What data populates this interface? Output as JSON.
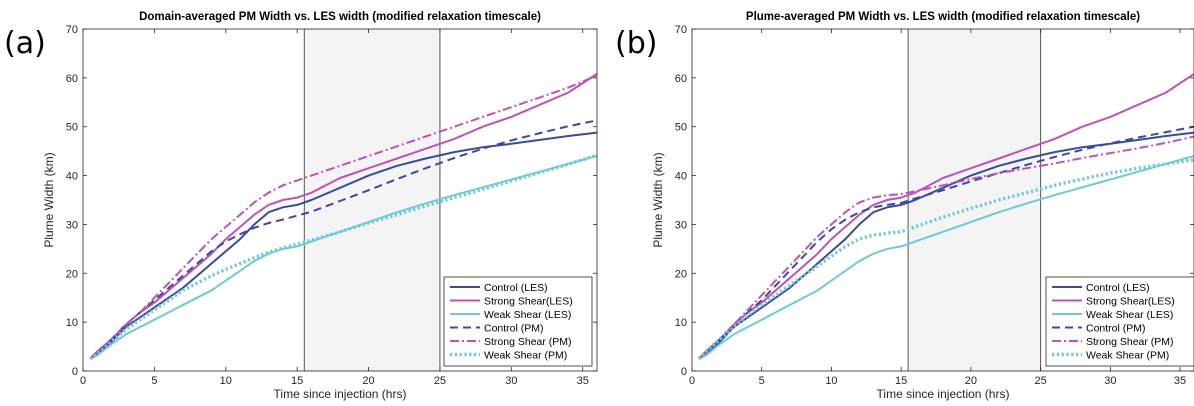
{
  "colors": {
    "control": "#3a4a9f",
    "strong": "#c151b6",
    "weak": "#6ecad6",
    "shade": "#f4f4f4"
  },
  "chart_data": [
    {
      "type": "line",
      "panel_label": "(a)",
      "title": "Domain-averaged PM Width vs. LES width (modified relaxation timescale)",
      "xlabel": "Time since injection (hrs)",
      "ylabel": "Plume Width (km)",
      "xlim": [
        0,
        36
      ],
      "ylim": [
        0,
        70
      ],
      "xticks": [
        0,
        5,
        10,
        15,
        20,
        25,
        30,
        35
      ],
      "yticks": [
        0,
        10,
        20,
        30,
        40,
        50,
        60,
        70
      ],
      "shaded_region": [
        15.5,
        25
      ],
      "legend_position": "bottom-right",
      "series": [
        {
          "name": "Control (LES)",
          "style": "solid",
          "color_key": "control",
          "x": [
            0.5,
            1,
            2,
            3,
            4,
            5,
            6,
            7,
            8,
            9,
            10,
            11,
            12,
            13,
            14,
            15,
            16,
            18,
            20,
            22,
            24,
            26,
            28,
            30,
            32,
            34,
            36
          ],
          "y": [
            2.5,
            3.5,
            6,
            9,
            11,
            13,
            15,
            17,
            19.5,
            22,
            24.5,
            27,
            30,
            32.5,
            33.5,
            34,
            35,
            37.5,
            40,
            42,
            43.5,
            44.8,
            45.8,
            46.5,
            47.3,
            48.1,
            48.8
          ]
        },
        {
          "name": "Strong Shear(LES)",
          "style": "solid",
          "color_key": "strong",
          "x": [
            0.5,
            1,
            2,
            3,
            4,
            5,
            6,
            7,
            8,
            9,
            10,
            11,
            12,
            13,
            14,
            15,
            16,
            18,
            20,
            22,
            24,
            26,
            28,
            30,
            32,
            34,
            36
          ],
          "y": [
            2.5,
            4,
            6.5,
            9.5,
            12,
            14,
            16.5,
            19,
            21.5,
            24,
            27,
            29.5,
            32,
            34,
            35,
            35.5,
            36.5,
            39.5,
            41.5,
            43.5,
            45.5,
            47.5,
            50,
            52,
            54.5,
            57,
            60.8
          ]
        },
        {
          "name": "Weak Shear (LES)",
          "style": "solid",
          "color_key": "weak",
          "x": [
            0.5,
            1,
            2,
            3,
            4,
            5,
            6,
            7,
            8,
            9,
            10,
            11,
            12,
            13,
            14,
            15,
            16,
            18,
            20,
            22,
            24,
            26,
            28,
            30,
            32,
            34,
            36
          ],
          "y": [
            2.5,
            3.2,
            5.5,
            7.5,
            9,
            10.5,
            12,
            13.5,
            15,
            16.5,
            18.5,
            20.5,
            22.5,
            24,
            25,
            25.5,
            26.5,
            28.5,
            30.5,
            32.5,
            34.3,
            36,
            37.6,
            39.2,
            40.8,
            42.4,
            44
          ]
        },
        {
          "name": "Control (PM)",
          "style": "dashed",
          "color_key": "control",
          "x": [
            0.5,
            1,
            2,
            3,
            4,
            5,
            6,
            7,
            8,
            9,
            10,
            11,
            12,
            13,
            14,
            15,
            16,
            18,
            20,
            22,
            24,
            26,
            28,
            30,
            32,
            34,
            36
          ],
          "y": [
            2.5,
            4,
            6.5,
            9.5,
            12,
            14.5,
            17,
            19.5,
            22,
            24.5,
            26.5,
            28,
            29.3,
            30.3,
            31,
            31.8,
            32.6,
            34.8,
            37,
            39.3,
            41.5,
            43.6,
            45.5,
            47.2,
            48.7,
            50.1,
            51.3
          ]
        },
        {
          "name": "Strong Shear (PM)",
          "style": "dashdot",
          "color_key": "strong",
          "x": [
            0.5,
            1,
            2,
            3,
            4,
            5,
            6,
            7,
            8,
            9,
            10,
            11,
            12,
            13,
            14,
            15,
            16,
            18,
            20,
            22,
            24,
            26,
            28,
            30,
            32,
            34,
            36
          ],
          "y": [
            2.5,
            4,
            6.5,
            9.5,
            12,
            15,
            18,
            21,
            24,
            27,
            29.5,
            32,
            34.5,
            36.5,
            38,
            39,
            40,
            42,
            44,
            46,
            48,
            50,
            52,
            54,
            56,
            58,
            60.5
          ]
        },
        {
          "name": "Weak Shear (PM)",
          "style": "dotted",
          "color_key": "weak",
          "x": [
            0.5,
            1,
            2,
            3,
            4,
            5,
            6,
            7,
            8,
            9,
            10,
            11,
            12,
            13,
            14,
            15,
            16,
            18,
            20,
            22,
            24,
            26,
            28,
            30,
            32,
            34,
            36
          ],
          "y": [
            2.5,
            3.5,
            6,
            8.5,
            10.5,
            12.5,
            14.5,
            16.5,
            18,
            19.5,
            20.8,
            22,
            23.2,
            24.3,
            25.2,
            26,
            26.8,
            28.5,
            30.3,
            32,
            33.8,
            35.5,
            37.2,
            38.9,
            40.6,
            42.3,
            44.2
          ]
        }
      ]
    },
    {
      "type": "line",
      "panel_label": "(b)",
      "title": "Plume-averaged PM Width vs. LES width (modified relaxation timescale)",
      "xlabel": "Time since injection (hrs)",
      "ylabel": "Plume Width (km)",
      "xlim": [
        0,
        36
      ],
      "ylim": [
        0,
        70
      ],
      "xticks": [
        0,
        5,
        10,
        15,
        20,
        25,
        30,
        35
      ],
      "yticks": [
        0,
        10,
        20,
        30,
        40,
        50,
        60,
        70
      ],
      "shaded_region": [
        15.5,
        25
      ],
      "legend_position": "bottom-right",
      "series": [
        {
          "name": "Control (LES)",
          "style": "solid",
          "color_key": "control",
          "x": [
            0.5,
            1,
            2,
            3,
            4,
            5,
            6,
            7,
            8,
            9,
            10,
            11,
            12,
            13,
            14,
            15,
            16,
            18,
            20,
            22,
            24,
            26,
            28,
            30,
            32,
            34,
            36
          ],
          "y": [
            2.5,
            3.5,
            6,
            9,
            11,
            13,
            15,
            17,
            19.5,
            22,
            24.5,
            27,
            30,
            32.5,
            33.5,
            34,
            35,
            37.5,
            40,
            42,
            43.5,
            44.8,
            45.8,
            46.5,
            47.3,
            48.1,
            48.8
          ]
        },
        {
          "name": "Strong Shear(LES)",
          "style": "solid",
          "color_key": "strong",
          "x": [
            0.5,
            1,
            2,
            3,
            4,
            5,
            6,
            7,
            8,
            9,
            10,
            11,
            12,
            13,
            14,
            15,
            16,
            18,
            20,
            22,
            24,
            26,
            28,
            30,
            32,
            34,
            36
          ],
          "y": [
            2.5,
            4,
            6.5,
            9.5,
            12,
            14,
            16.5,
            19,
            21.5,
            24,
            27,
            29.5,
            32,
            34,
            35,
            35.5,
            36.5,
            39.5,
            41.5,
            43.5,
            45.5,
            47.5,
            50,
            52,
            54.5,
            57,
            60.8
          ]
        },
        {
          "name": "Weak Shear (LES)",
          "style": "solid",
          "color_key": "weak",
          "x": [
            0.5,
            1,
            2,
            3,
            4,
            5,
            6,
            7,
            8,
            9,
            10,
            11,
            12,
            13,
            14,
            15,
            16,
            18,
            20,
            22,
            24,
            26,
            28,
            30,
            32,
            34,
            36
          ],
          "y": [
            2.5,
            3.2,
            5.5,
            7.5,
            9,
            10.5,
            12,
            13.5,
            15,
            16.5,
            18.5,
            20.5,
            22.5,
            24,
            25,
            25.5,
            26.5,
            28.5,
            30.5,
            32.5,
            34.3,
            36,
            37.6,
            39.2,
            40.8,
            42.4,
            44
          ]
        },
        {
          "name": "Control (PM)",
          "style": "dashed",
          "color_key": "control",
          "x": [
            0.5,
            1,
            2,
            3,
            4,
            5,
            6,
            7,
            8,
            9,
            10,
            11,
            12,
            13,
            14,
            15,
            16,
            18,
            20,
            22,
            24,
            26,
            28,
            30,
            32,
            34,
            36
          ],
          "y": [
            2.5,
            4,
            6.5,
            9.5,
            12,
            14.5,
            17.5,
            20.5,
            23.5,
            26.5,
            29,
            31,
            32.5,
            33.5,
            34,
            34.4,
            35.3,
            37,
            38.8,
            40.5,
            42.2,
            43.8,
            45.3,
            46.6,
            47.8,
            48.9,
            50
          ]
        },
        {
          "name": "Strong Shear (PM)",
          "style": "dashdot",
          "color_key": "strong",
          "x": [
            0.5,
            1,
            2,
            3,
            4,
            5,
            6,
            7,
            8,
            9,
            10,
            11,
            12,
            13,
            14,
            15,
            16,
            18,
            20,
            22,
            24,
            26,
            28,
            30,
            32,
            34,
            36
          ],
          "y": [
            2.5,
            4,
            6.5,
            9.5,
            12.5,
            15.5,
            18.5,
            21.5,
            24.5,
            27.5,
            30,
            32.5,
            34.5,
            35.5,
            36,
            36.2,
            36.8,
            38,
            39.3,
            40.5,
            41.5,
            42.5,
            43.6,
            44.6,
            45.6,
            46.7,
            48
          ]
        },
        {
          "name": "Weak Shear (PM)",
          "style": "dotted",
          "color_key": "weak",
          "x": [
            0.5,
            1,
            2,
            3,
            4,
            5,
            6,
            7,
            8,
            9,
            10,
            11,
            12,
            13,
            14,
            15,
            16,
            18,
            20,
            22,
            24,
            26,
            28,
            30,
            32,
            34,
            36
          ],
          "y": [
            2.5,
            4,
            6.5,
            9,
            11.5,
            13.5,
            15.5,
            17.5,
            19.5,
            21.5,
            23.5,
            25.5,
            27,
            27.8,
            28.2,
            28.5,
            29.5,
            31.5,
            33.3,
            35,
            36.5,
            38,
            39.3,
            40.5,
            41.5,
            42.4,
            43.2
          ]
        }
      ]
    }
  ]
}
